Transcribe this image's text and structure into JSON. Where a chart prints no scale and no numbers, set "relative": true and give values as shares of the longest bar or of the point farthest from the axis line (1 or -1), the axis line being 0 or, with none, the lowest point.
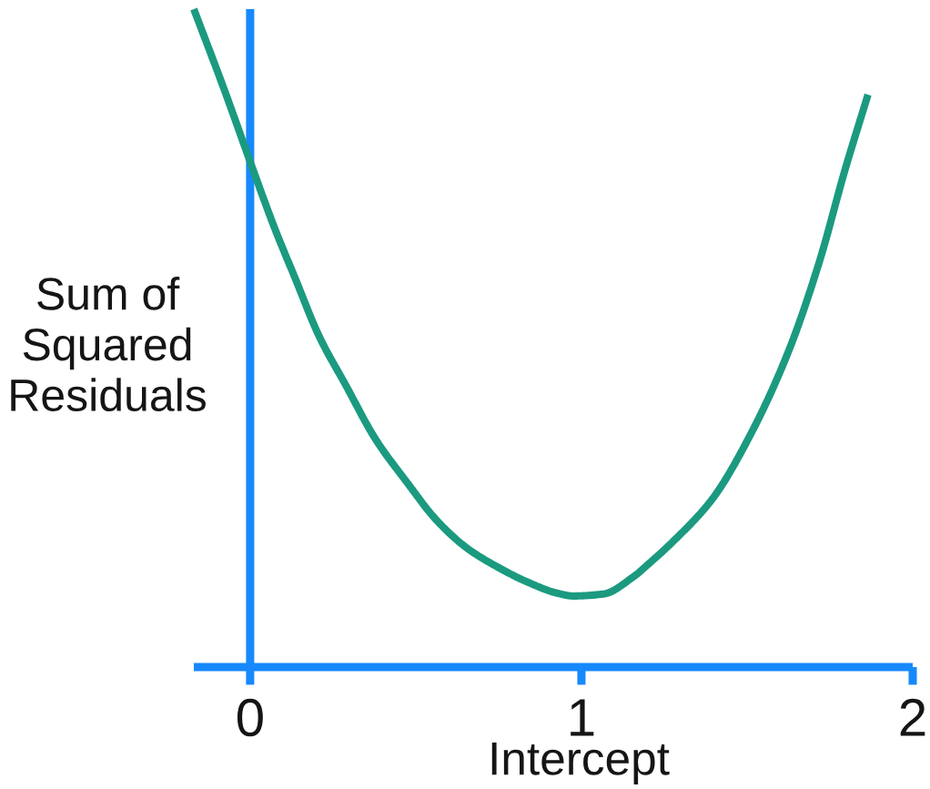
{
  "chart_data": {
    "type": "line",
    "xlabel": "Intercept",
    "ylabel": "Sum of\nSquared\nResiduals",
    "relative": true,
    "xlim": [
      -0.17,
      2
    ],
    "xticks": [
      0,
      1,
      2
    ],
    "tick_labels": "x",
    "ref_lines": [
      {
        "axis": "x",
        "value": 0,
        "color": "#1789fc"
      }
    ],
    "series": [
      {
        "color": "#1b9a80",
        "x": [
          -0.17,
          -0.077,
          0.008,
          0.074,
          0.135,
          0.209,
          0.288,
          0.379,
          0.473,
          0.563,
          0.654,
          0.747,
          0.838,
          0.929,
          0.975,
          1.066,
          1.159,
          1.201,
          1.283,
          1.396,
          1.511,
          1.626,
          1.717,
          1.797,
          1.865
        ],
        "values": [
          1.0,
          0.876,
          0.757,
          0.667,
          0.592,
          0.502,
          0.429,
          0.346,
          0.281,
          0.223,
          0.181,
          0.152,
          0.129,
          0.112,
          0.108,
          0.111,
          0.138,
          0.156,
          0.194,
          0.256,
          0.354,
          0.481,
          0.614,
          0.758,
          0.87
        ]
      }
    ]
  }
}
